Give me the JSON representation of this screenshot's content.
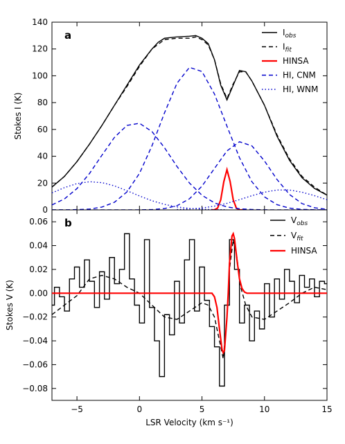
{
  "chart_data": [
    {
      "type": "line",
      "annotation": "a",
      "ylabel": "Stokes I (K)",
      "xlim": [
        -7,
        15
      ],
      "ylim": [
        0,
        140
      ],
      "xticks": [
        -5,
        0,
        5,
        10,
        15
      ],
      "yticks": [
        0,
        20,
        40,
        60,
        80,
        100,
        120,
        140
      ],
      "legend": "upper right",
      "series": [
        {
          "name": "Iobs",
          "color": "#000000",
          "style": "solid",
          "x": [
            -7,
            -6,
            -5,
            -4,
            -3,
            -2,
            -1,
            0,
            0.5,
            1,
            1.5,
            2,
            3,
            4,
            4.5,
            5,
            5.5,
            6,
            6.5,
            7,
            7.5,
            8,
            8.5,
            9,
            10,
            11,
            12,
            13,
            14,
            15
          ],
          "values": [
            17,
            25,
            36,
            49,
            63,
            78,
            93,
            108,
            114,
            120,
            125,
            128,
            129,
            129.5,
            130,
            128,
            124,
            112,
            93,
            82,
            93,
            104,
            103,
            96,
            78,
            55,
            37,
            24,
            16,
            11
          ]
        },
        {
          "name": "Ifit",
          "color": "#000000",
          "style": "dashed",
          "x": [
            -7,
            -6,
            -5,
            -4,
            -3,
            -2,
            -1,
            0,
            1,
            2,
            3,
            4,
            4.5,
            5,
            5.5,
            6,
            6.5,
            7,
            7.5,
            8,
            8.5,
            9,
            10,
            11,
            12,
            13,
            14,
            15
          ],
          "values": [
            17,
            25,
            36,
            49,
            63,
            78,
            92,
            107,
            120,
            127,
            128,
            128,
            129,
            127,
            123,
            112,
            94,
            83,
            94,
            103,
            103,
            96,
            78,
            56,
            38,
            25,
            17,
            11
          ]
        },
        {
          "name": "HINSA",
          "color": "#ff0000",
          "style": "solid",
          "x": [
            5.75,
            6,
            6.25,
            6.5,
            6.75,
            7,
            7.25,
            7.5,
            7.75,
            8,
            8.25
          ],
          "values": [
            0,
            0.1,
            1.3,
            7.5,
            21.2,
            30,
            21.2,
            7.5,
            1.3,
            0.1,
            0
          ]
        },
        {
          "name": "HI, CNM",
          "color": "#0000cc",
          "style": "dashed",
          "x": [
            -7,
            -6,
            -5,
            -4,
            -3,
            -2,
            -1,
            0,
            1,
            2,
            3,
            4,
            5,
            6,
            7,
            8,
            9,
            10,
            11,
            12,
            13,
            14,
            15
          ],
          "values": [
            3.7,
            8.2,
            15.9,
            27.1,
            40.8,
            54.1,
            63.0,
            64.6,
            58.4,
            46.4,
            32.4,
            20.0,
            10.9,
            5.2,
            2.2,
            0.8,
            0.3,
            0.1,
            0,
            0,
            0,
            0,
            0
          ]
        },
        {
          "x": [
            -7,
            -6,
            -5,
            -4,
            -3,
            -2,
            -1,
            0,
            1,
            2,
            3,
            4,
            5,
            6,
            7,
            8,
            9,
            10,
            11,
            12,
            13,
            14,
            15
          ],
          "color": "#0000cc",
          "style": "dashed",
          "values": [
            0,
            0.04,
            0.2,
            0.6,
            2.1,
            5.7,
            13.4,
            27.2,
            47.8,
            72.3,
            94.4,
            106.3,
            103.2,
            86.4,
            62.4,
            38.9,
            20.9,
            9.7,
            3.9,
            1.3,
            0.4,
            0.1,
            0
          ]
        },
        {
          "x": [
            -7,
            -6,
            -5,
            -4,
            -3,
            -2,
            -1,
            0,
            1,
            2,
            3,
            4,
            5,
            6,
            7,
            8,
            9,
            10,
            11,
            12,
            13,
            14,
            15
          ],
          "color": "#0000cc",
          "style": "dashed",
          "values": [
            0,
            0,
            0,
            0,
            0,
            0,
            0,
            0.05,
            0.24,
            1.0,
            3.1,
            8.3,
            17.7,
            30.9,
            44.0,
            50.8,
            47.7,
            36.5,
            22.7,
            11.5,
            4.7,
            1.6,
            0.4
          ]
        },
        {
          "name": "HI, WNM",
          "color": "#0000cc",
          "style": "dotted",
          "x": [
            -7,
            -6,
            -5,
            -4,
            -3,
            -2,
            -1,
            0,
            1,
            2,
            3,
            4,
            5,
            6,
            7
          ],
          "values": [
            12.7,
            16.6,
            19.6,
            21.0,
            20.3,
            17.9,
            14.3,
            10.4,
            6.8,
            4.1,
            2.2,
            1.1,
            0.5,
            0.2,
            0.1
          ]
        },
        {
          "x": [
            3,
            4,
            5,
            6,
            7,
            8,
            9,
            10,
            11,
            12,
            13,
            14,
            15
          ],
          "color": "#0000cc",
          "style": "dotted",
          "values": [
            0.3,
            0.7,
            1.4,
            2.8,
            4.9,
            7.6,
            10.6,
            13.2,
            14.8,
            14.8,
            13.2,
            10.6,
            7.6
          ]
        }
      ]
    },
    {
      "type": "line",
      "annotation": "b",
      "ylabel": "Stokes V (K)",
      "xlabel": "LSR Velocity (km s⁻¹)",
      "xlim": [
        -7,
        15
      ],
      "ylim": [
        -0.09,
        0.07
      ],
      "xticks": [
        {
          "value": -5,
          "label": "−5"
        },
        0,
        5,
        10,
        15
      ],
      "yticks": [
        {
          "value": -0.08,
          "label": "−0.08"
        },
        {
          "value": -0.06,
          "label": "−0.06"
        },
        {
          "value": -0.04,
          "label": "−0.04"
        },
        {
          "value": -0.02,
          "label": "−0.02"
        },
        {
          "value": 0,
          "label": "0.00"
        },
        {
          "value": 0.02,
          "label": "0.02"
        },
        {
          "value": 0.04,
          "label": "0.04"
        },
        {
          "value": 0.06,
          "label": "0.06"
        }
      ],
      "legend": "upper right",
      "series": [
        {
          "name": "Vobs",
          "color": "#000000",
          "style": "steps",
          "x": [
            -7.0,
            -6.6,
            -6.2,
            -5.8,
            -5.4,
            -5.0,
            -4.6,
            -4.2,
            -3.8,
            -3.4,
            -3.0,
            -2.6,
            -2.2,
            -1.8,
            -1.4,
            -1.0,
            -0.6,
            -0.2,
            0.2,
            0.6,
            1.0,
            1.4,
            1.8,
            2.2,
            2.6,
            3.0,
            3.4,
            3.8,
            4.2,
            4.6,
            5.0,
            5.4,
            5.8,
            6.2,
            6.6,
            7.0,
            7.4,
            7.8,
            8.2,
            8.6,
            9.0,
            9.4,
            9.8,
            10.2,
            10.6,
            11.0,
            11.4,
            11.8,
            12.2,
            12.6,
            13.0,
            13.4,
            13.8,
            14.2,
            14.6,
            15.0
          ],
          "values": [
            -0.01,
            0.005,
            -0.003,
            -0.015,
            0.012,
            0.022,
            0.005,
            0.028,
            0.01,
            -0.012,
            0.018,
            -0.005,
            0.03,
            0.008,
            0.02,
            0.05,
            0.012,
            -0.01,
            -0.025,
            0.045,
            -0.012,
            -0.04,
            -0.07,
            -0.018,
            -0.035,
            0.01,
            -0.025,
            0.028,
            0.045,
            -0.015,
            0.022,
            -0.006,
            -0.028,
            -0.045,
            -0.078,
            -0.01,
            0.045,
            0.02,
            -0.025,
            -0.01,
            -0.04,
            -0.015,
            -0.03,
            0.008,
            -0.02,
            0.012,
            -0.005,
            0.02,
            0.01,
            -0.008,
            0.015,
            0.005,
            0.012,
            -0.003,
            0.01,
            0.008
          ]
        },
        {
          "name": "Vfit",
          "color": "#000000",
          "style": "dashed",
          "x": [
            -7,
            -6,
            -5,
            -4,
            -3,
            -2,
            -1,
            0,
            1,
            2,
            3,
            4,
            5,
            5.5,
            6,
            6.4,
            6.7,
            7.0,
            7.2,
            7.5,
            7.8,
            8.1,
            8.5,
            9,
            10,
            11,
            12,
            13,
            14,
            15
          ],
          "values": [
            -0.018,
            -0.01,
            -0.002,
            0.012,
            0.015,
            0.012,
            0.005,
            0,
            -0.01,
            -0.02,
            -0.022,
            -0.015,
            -0.008,
            -0.01,
            -0.02,
            -0.04,
            -0.055,
            -0.02,
            0.02,
            0.045,
            0.03,
            0.005,
            -0.01,
            -0.02,
            -0.022,
            -0.015,
            -0.008,
            0,
            0.005,
            0.003
          ]
        },
        {
          "name": "HINSA",
          "color": "#ff0000",
          "style": "solid",
          "x": [
            -7,
            5.8,
            6.0,
            6.2,
            6.4,
            6.6,
            6.7,
            6.8,
            7.0,
            7.1,
            7.2,
            7.4,
            7.5,
            7.6,
            7.8,
            8.0,
            8.2,
            8.4,
            8.6,
            15
          ],
          "values": [
            0,
            0,
            -0.003,
            -0.012,
            -0.03,
            -0.047,
            -0.05,
            -0.048,
            -0.02,
            0,
            0.025,
            0.048,
            0.05,
            0.046,
            0.028,
            0.012,
            0.004,
            0.001,
            0,
            0
          ]
        }
      ]
    }
  ]
}
